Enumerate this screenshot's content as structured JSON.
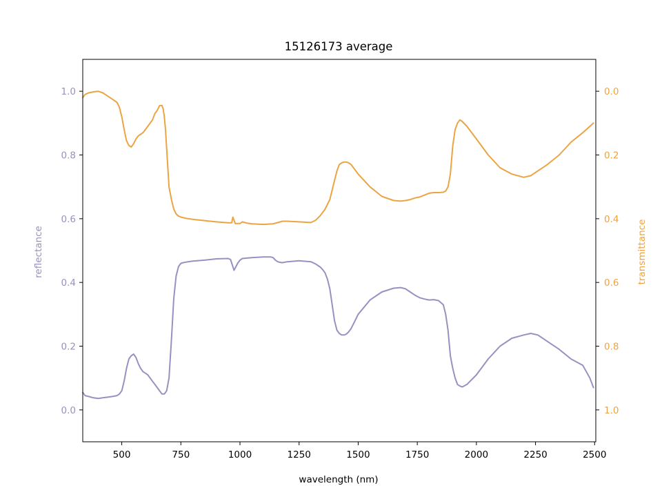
{
  "chart_data": {
    "type": "line",
    "title": "15126173 average",
    "xlabel": "wavelength (nm)",
    "ylabel_left": "reflectance",
    "ylabel_right": "transmittance",
    "xlim": [
      335,
      2505
    ],
    "ylim_left": [
      -0.1,
      1.1
    ],
    "ylim_right": [
      1.1,
      -0.1
    ],
    "x_ticks": [
      "500",
      "750",
      "1000",
      "1250",
      "1500",
      "1750",
      "2000",
      "2250",
      "2500"
    ],
    "y_ticks_left": [
      "0.0",
      "0.2",
      "0.4",
      "0.6",
      "0.8",
      "1.0"
    ],
    "y_ticks_right": [
      "0.0",
      "0.2",
      "0.4",
      "0.6",
      "0.8",
      "1.0"
    ],
    "grid": false,
    "colors": {
      "reflectance": "#9890c0",
      "transmittance": "#eca342"
    },
    "series": [
      {
        "name": "reflectance",
        "axis": "left",
        "x": [
          335,
          345,
          360,
          380,
          400,
          420,
          440,
          460,
          480,
          490,
          500,
          510,
          520,
          530,
          540,
          550,
          560,
          570,
          580,
          590,
          600,
          610,
          620,
          630,
          640,
          650,
          660,
          670,
          680,
          690,
          700,
          710,
          720,
          730,
          740,
          750,
          760,
          780,
          800,
          850,
          900,
          950,
          960,
          975,
          990,
          1000,
          1010,
          1050,
          1100,
          1130,
          1140,
          1150,
          1160,
          1170,
          1180,
          1200,
          1250,
          1300,
          1320,
          1340,
          1350,
          1360,
          1370,
          1380,
          1390,
          1400,
          1410,
          1420,
          1430,
          1440,
          1450,
          1460,
          1470,
          1480,
          1500,
          1550,
          1600,
          1650,
          1680,
          1700,
          1720,
          1740,
          1760,
          1780,
          1800,
          1820,
          1840,
          1860,
          1870,
          1880,
          1890,
          1900,
          1910,
          1920,
          1930,
          1940,
          1960,
          2000,
          2050,
          2100,
          2150,
          2200,
          2230,
          2260,
          2300,
          2350,
          2400,
          2450,
          2480,
          2495
        ],
        "values": [
          0.055,
          0.045,
          0.042,
          0.038,
          0.036,
          0.038,
          0.04,
          0.042,
          0.045,
          0.05,
          0.06,
          0.09,
          0.13,
          0.16,
          0.17,
          0.175,
          0.165,
          0.145,
          0.13,
          0.12,
          0.115,
          0.11,
          0.1,
          0.09,
          0.08,
          0.07,
          0.06,
          0.05,
          0.05,
          0.06,
          0.1,
          0.22,
          0.35,
          0.42,
          0.45,
          0.46,
          0.462,
          0.465,
          0.467,
          0.47,
          0.474,
          0.475,
          0.472,
          0.438,
          0.46,
          0.47,
          0.475,
          0.478,
          0.48,
          0.48,
          0.478,
          0.47,
          0.465,
          0.463,
          0.462,
          0.465,
          0.468,
          0.465,
          0.458,
          0.448,
          0.44,
          0.43,
          0.41,
          0.38,
          0.33,
          0.28,
          0.25,
          0.24,
          0.235,
          0.235,
          0.238,
          0.245,
          0.255,
          0.27,
          0.3,
          0.345,
          0.37,
          0.382,
          0.384,
          0.38,
          0.37,
          0.36,
          0.352,
          0.348,
          0.345,
          0.346,
          0.343,
          0.33,
          0.3,
          0.25,
          0.17,
          0.13,
          0.1,
          0.08,
          0.075,
          0.072,
          0.08,
          0.11,
          0.16,
          0.2,
          0.225,
          0.235,
          0.24,
          0.235,
          0.215,
          0.19,
          0.16,
          0.14,
          0.1,
          0.07
        ]
      },
      {
        "name": "transmittance",
        "axis": "right",
        "x": [
          335,
          345,
          360,
          380,
          400,
          420,
          440,
          460,
          480,
          490,
          500,
          510,
          520,
          530,
          540,
          550,
          560,
          570,
          580,
          590,
          600,
          610,
          620,
          630,
          640,
          650,
          660,
          670,
          675,
          680,
          685,
          690,
          700,
          710,
          720,
          730,
          740,
          750,
          760,
          780,
          800,
          850,
          900,
          950,
          965,
          970,
          980,
          1000,
          1010,
          1030,
          1050,
          1100,
          1140,
          1160,
          1180,
          1200,
          1250,
          1300,
          1320,
          1340,
          1360,
          1380,
          1390,
          1400,
          1410,
          1420,
          1430,
          1440,
          1450,
          1460,
          1470,
          1480,
          1500,
          1550,
          1600,
          1650,
          1680,
          1700,
          1720,
          1740,
          1760,
          1780,
          1800,
          1820,
          1840,
          1860,
          1870,
          1880,
          1890,
          1900,
          1910,
          1920,
          1930,
          1940,
          1960,
          2000,
          2050,
          2100,
          2150,
          2200,
          2230,
          2260,
          2300,
          2350,
          2400,
          2450,
          2480,
          2495
        ],
        "values": [
          0.02,
          0.01,
          0.005,
          0.002,
          0.0,
          0.005,
          0.015,
          0.025,
          0.035,
          0.05,
          0.08,
          0.12,
          0.155,
          0.17,
          0.175,
          0.165,
          0.15,
          0.14,
          0.135,
          0.13,
          0.12,
          0.11,
          0.1,
          0.09,
          0.07,
          0.06,
          0.045,
          0.045,
          0.055,
          0.08,
          0.12,
          0.18,
          0.3,
          0.34,
          0.37,
          0.385,
          0.392,
          0.395,
          0.397,
          0.4,
          0.402,
          0.406,
          0.41,
          0.413,
          0.413,
          0.395,
          0.415,
          0.415,
          0.41,
          0.414,
          0.416,
          0.418,
          0.416,
          0.412,
          0.408,
          0.408,
          0.41,
          0.412,
          0.405,
          0.39,
          0.37,
          0.34,
          0.31,
          0.28,
          0.25,
          0.23,
          0.225,
          0.222,
          0.222,
          0.225,
          0.23,
          0.24,
          0.26,
          0.3,
          0.33,
          0.343,
          0.345,
          0.343,
          0.34,
          0.335,
          0.332,
          0.326,
          0.32,
          0.318,
          0.318,
          0.317,
          0.313,
          0.3,
          0.26,
          0.17,
          0.12,
          0.1,
          0.09,
          0.095,
          0.11,
          0.15,
          0.2,
          0.24,
          0.26,
          0.27,
          0.265,
          0.25,
          0.23,
          0.2,
          0.16,
          0.13,
          0.11,
          0.1
        ]
      }
    ]
  }
}
